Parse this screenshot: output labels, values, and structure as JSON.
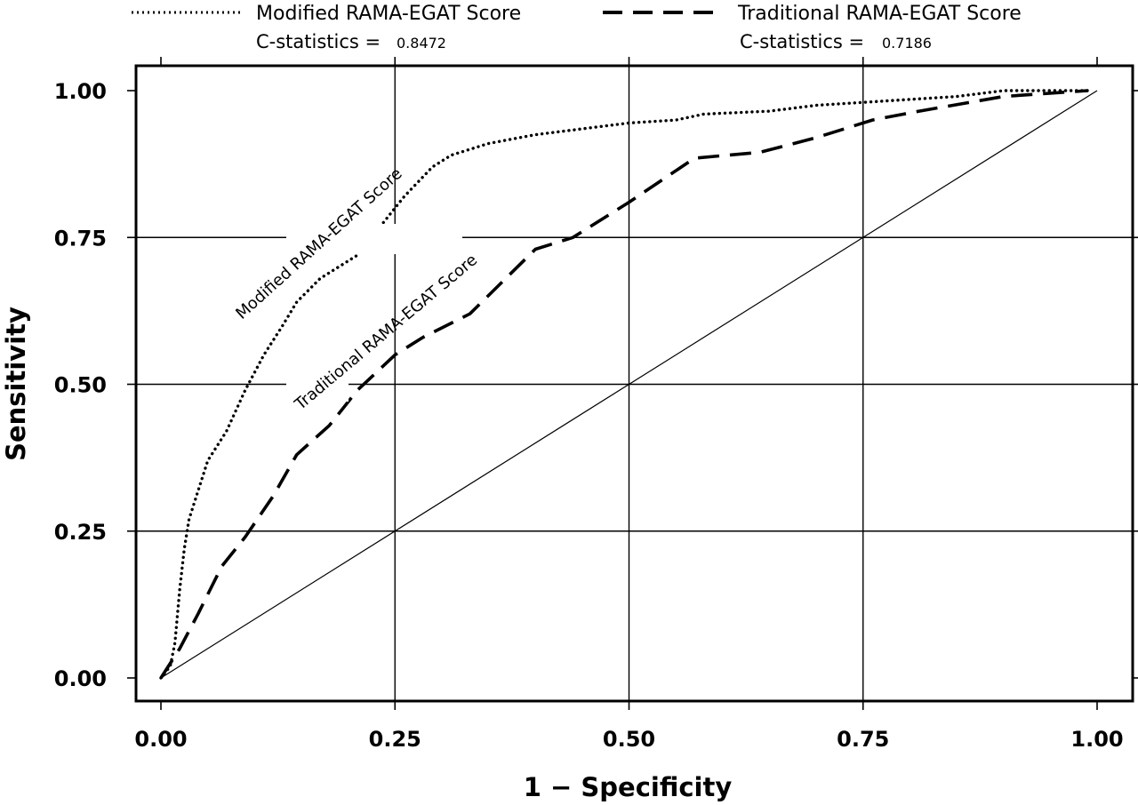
{
  "chart_data": {
    "type": "line",
    "xlabel": "1 − Specificity",
    "ylabel": "Sensitivity",
    "xlim": [
      0,
      1
    ],
    "ylim": [
      0,
      1
    ],
    "xticks": [
      "0.00",
      "0.25",
      "0.50",
      "0.75",
      "1.00"
    ],
    "yticks": [
      "0.00",
      "0.25",
      "0.50",
      "0.75",
      "1.00"
    ],
    "grid": true,
    "legend_position": "top",
    "series": [
      {
        "name": "Modified RAMA-EGAT Score",
        "style": "dotted",
        "c_statistic_label": "C-statistics =",
        "c_statistic": "0.8472",
        "annotation": "Modified RAMA-EGAT Score",
        "points": [
          [
            0.0,
            0.0
          ],
          [
            0.01,
            0.02
          ],
          [
            0.015,
            0.06
          ],
          [
            0.02,
            0.15
          ],
          [
            0.025,
            0.22
          ],
          [
            0.03,
            0.27
          ],
          [
            0.04,
            0.32
          ],
          [
            0.05,
            0.37
          ],
          [
            0.07,
            0.42
          ],
          [
            0.09,
            0.49
          ],
          [
            0.11,
            0.55
          ],
          [
            0.13,
            0.6
          ],
          [
            0.145,
            0.64
          ],
          [
            0.17,
            0.68
          ],
          [
            0.21,
            0.72
          ],
          [
            0.24,
            0.78
          ],
          [
            0.26,
            0.82
          ],
          [
            0.29,
            0.87
          ],
          [
            0.31,
            0.89
          ],
          [
            0.35,
            0.91
          ],
          [
            0.4,
            0.925
          ],
          [
            0.45,
            0.935
          ],
          [
            0.5,
            0.945
          ],
          [
            0.55,
            0.95
          ],
          [
            0.58,
            0.96
          ],
          [
            0.65,
            0.965
          ],
          [
            0.7,
            0.975
          ],
          [
            0.75,
            0.98
          ],
          [
            0.8,
            0.985
          ],
          [
            0.85,
            0.99
          ],
          [
            0.9,
            1.0
          ],
          [
            0.99,
            1.0
          ]
        ]
      },
      {
        "name": "Traditional RAMA-EGAT Score",
        "style": "dashed",
        "c_statistic_label": "C-statistics =",
        "c_statistic": "0.7186",
        "annotation": "Traditional RAMA-EGAT Score",
        "points": [
          [
            0.0,
            0.0
          ],
          [
            0.02,
            0.05
          ],
          [
            0.04,
            0.11
          ],
          [
            0.065,
            0.19
          ],
          [
            0.09,
            0.24
          ],
          [
            0.12,
            0.31
          ],
          [
            0.145,
            0.38
          ],
          [
            0.18,
            0.43
          ],
          [
            0.21,
            0.49
          ],
          [
            0.25,
            0.55
          ],
          [
            0.28,
            0.58
          ],
          [
            0.33,
            0.62
          ],
          [
            0.4,
            0.73
          ],
          [
            0.44,
            0.75
          ],
          [
            0.5,
            0.81
          ],
          [
            0.57,
            0.885
          ],
          [
            0.64,
            0.895
          ],
          [
            0.7,
            0.92
          ],
          [
            0.76,
            0.95
          ],
          [
            0.81,
            0.965
          ],
          [
            0.9,
            0.99
          ],
          [
            0.99,
            1.0
          ]
        ]
      },
      {
        "name": "",
        "style": "solid-thin",
        "points": [
          [
            0,
            0
          ],
          [
            1,
            1
          ]
        ]
      }
    ]
  }
}
